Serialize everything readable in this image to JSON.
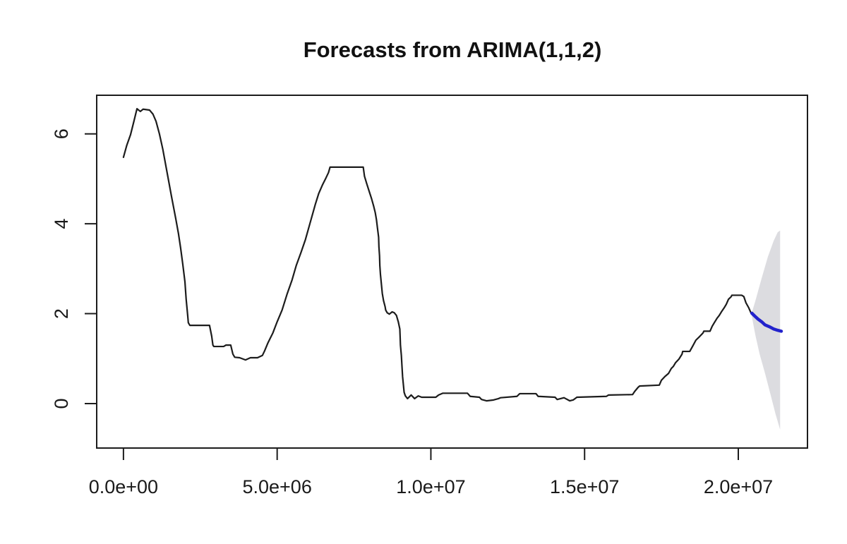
{
  "chart_data": {
    "type": "line",
    "title": "Forecasts from ARIMA(1,1,2)",
    "x_axis": {
      "lim": [
        -870000,
        22250000
      ],
      "ticks": [
        0,
        5000000,
        10000000,
        15000000,
        20000000
      ],
      "tick_labels": [
        "0.0e+00",
        "5.0e+06",
        "1.0e+07",
        "1.5e+07",
        "2.0e+07"
      ]
    },
    "y_axis": {
      "lim": [
        -0.99,
        6.86
      ],
      "ticks": [
        0,
        2,
        4,
        6
      ],
      "tick_labels": [
        "0",
        "2",
        "4",
        "6"
      ]
    },
    "grid": false,
    "legend": "none",
    "colors": {
      "historical": "#1c1c1c",
      "forecast": "#2222cc",
      "interval": "#dcdce0",
      "axis": "#1c1c1c",
      "background": "#ffffff"
    },
    "interval": {
      "name": "forecast-confidence-interval",
      "polygon": [
        [
          20440000,
          2.02
        ],
        [
          20570000,
          2.32
        ],
        [
          20760000,
          2.79
        ],
        [
          20960000,
          3.26
        ],
        [
          21150000,
          3.62
        ],
        [
          21280000,
          3.81
        ],
        [
          21360000,
          3.85
        ],
        [
          21360000,
          -0.58
        ],
        [
          21210000,
          -0.23
        ],
        [
          21060000,
          0.17
        ],
        [
          20870000,
          0.67
        ],
        [
          20690000,
          1.11
        ],
        [
          20550000,
          1.54
        ],
        [
          20440000,
          1.94
        ]
      ]
    },
    "series": [
      {
        "name": "historical",
        "color_key": "historical",
        "stroke_width": 2.2,
        "points": [
          [
            0,
            5.48
          ],
          [
            110000,
            5.75
          ],
          [
            230000,
            5.98
          ],
          [
            340000,
            6.28
          ],
          [
            440000,
            6.56
          ],
          [
            550000,
            6.5
          ],
          [
            640000,
            6.55
          ],
          [
            850000,
            6.53
          ],
          [
            960000,
            6.44
          ],
          [
            1060000,
            6.28
          ],
          [
            1170000,
            6.0
          ],
          [
            1280000,
            5.66
          ],
          [
            1420000,
            5.14
          ],
          [
            1560000,
            4.62
          ],
          [
            1700000,
            4.12
          ],
          [
            1790000,
            3.78
          ],
          [
            1860000,
            3.46
          ],
          [
            1930000,
            3.1
          ],
          [
            2000000,
            2.71
          ],
          [
            2040000,
            2.32
          ],
          [
            2090000,
            1.96
          ],
          [
            2110000,
            1.8
          ],
          [
            2160000,
            1.74
          ],
          [
            2800000,
            1.74
          ],
          [
            2870000,
            1.5
          ],
          [
            2910000,
            1.3
          ],
          [
            2940000,
            1.27
          ],
          [
            3260000,
            1.27
          ],
          [
            3330000,
            1.3
          ],
          [
            3490000,
            1.3
          ],
          [
            3560000,
            1.1
          ],
          [
            3620000,
            1.03
          ],
          [
            3780000,
            1.02
          ],
          [
            3970000,
            0.97
          ],
          [
            4130000,
            1.02
          ],
          [
            4360000,
            1.02
          ],
          [
            4520000,
            1.07
          ],
          [
            4590000,
            1.17
          ],
          [
            4700000,
            1.35
          ],
          [
            4860000,
            1.57
          ],
          [
            5000000,
            1.82
          ],
          [
            5160000,
            2.08
          ],
          [
            5320000,
            2.43
          ],
          [
            5480000,
            2.74
          ],
          [
            5620000,
            3.07
          ],
          [
            5780000,
            3.37
          ],
          [
            5920000,
            3.65
          ],
          [
            6080000,
            4.04
          ],
          [
            6240000,
            4.43
          ],
          [
            6350000,
            4.67
          ],
          [
            6470000,
            4.86
          ],
          [
            6580000,
            5.01
          ],
          [
            6670000,
            5.14
          ],
          [
            6720000,
            5.26
          ],
          [
            7800000,
            5.26
          ],
          [
            7840000,
            5.06
          ],
          [
            7910000,
            4.9
          ],
          [
            7980000,
            4.75
          ],
          [
            8070000,
            4.56
          ],
          [
            8140000,
            4.39
          ],
          [
            8190000,
            4.25
          ],
          [
            8230000,
            4.09
          ],
          [
            8260000,
            3.92
          ],
          [
            8300000,
            3.7
          ],
          [
            8310000,
            3.49
          ],
          [
            8330000,
            3.29
          ],
          [
            8340000,
            3.07
          ],
          [
            8360000,
            2.87
          ],
          [
            8390000,
            2.66
          ],
          [
            8420000,
            2.45
          ],
          [
            8460000,
            2.29
          ],
          [
            8510000,
            2.16
          ],
          [
            8530000,
            2.08
          ],
          [
            8580000,
            2.02
          ],
          [
            8650000,
            1.99
          ],
          [
            8740000,
            2.04
          ],
          [
            8810000,
            2.02
          ],
          [
            8880000,
            1.96
          ],
          [
            8940000,
            1.82
          ],
          [
            8990000,
            1.66
          ],
          [
            9000000,
            1.49
          ],
          [
            9010000,
            1.3
          ],
          [
            9040000,
            1.07
          ],
          [
            9060000,
            0.83
          ],
          [
            9080000,
            0.6
          ],
          [
            9110000,
            0.39
          ],
          [
            9130000,
            0.25
          ],
          [
            9170000,
            0.17
          ],
          [
            9240000,
            0.11
          ],
          [
            9360000,
            0.19
          ],
          [
            9470000,
            0.11
          ],
          [
            9590000,
            0.17
          ],
          [
            9700000,
            0.14
          ],
          [
            10160000,
            0.14
          ],
          [
            10250000,
            0.19
          ],
          [
            10390000,
            0.23
          ],
          [
            11190000,
            0.23
          ],
          [
            11280000,
            0.16
          ],
          [
            11580000,
            0.14
          ],
          [
            11650000,
            0.09
          ],
          [
            11810000,
            0.06
          ],
          [
            12040000,
            0.08
          ],
          [
            12200000,
            0.11
          ],
          [
            12270000,
            0.13
          ],
          [
            12800000,
            0.16
          ],
          [
            12890000,
            0.22
          ],
          [
            13420000,
            0.22
          ],
          [
            13490000,
            0.16
          ],
          [
            14040000,
            0.14
          ],
          [
            14110000,
            0.09
          ],
          [
            14330000,
            0.13
          ],
          [
            14520000,
            0.06
          ],
          [
            14630000,
            0.08
          ],
          [
            14750000,
            0.14
          ],
          [
            15710000,
            0.16
          ],
          [
            15780000,
            0.19
          ],
          [
            16560000,
            0.2
          ],
          [
            16630000,
            0.27
          ],
          [
            16740000,
            0.36
          ],
          [
            16790000,
            0.39
          ],
          [
            17430000,
            0.41
          ],
          [
            17500000,
            0.52
          ],
          [
            17610000,
            0.6
          ],
          [
            17730000,
            0.67
          ],
          [
            17820000,
            0.78
          ],
          [
            17890000,
            0.83
          ],
          [
            17960000,
            0.91
          ],
          [
            18070000,
            0.99
          ],
          [
            18170000,
            1.1
          ],
          [
            18190000,
            1.16
          ],
          [
            18420000,
            1.16
          ],
          [
            18510000,
            1.27
          ],
          [
            18620000,
            1.41
          ],
          [
            18740000,
            1.49
          ],
          [
            18850000,
            1.57
          ],
          [
            18880000,
            1.61
          ],
          [
            19080000,
            1.61
          ],
          [
            19150000,
            1.72
          ],
          [
            19220000,
            1.8
          ],
          [
            19310000,
            1.9
          ],
          [
            19380000,
            1.96
          ],
          [
            19450000,
            2.04
          ],
          [
            19540000,
            2.13
          ],
          [
            19610000,
            2.21
          ],
          [
            19680000,
            2.32
          ],
          [
            19770000,
            2.38
          ],
          [
            19790000,
            2.41
          ],
          [
            20110000,
            2.41
          ],
          [
            20180000,
            2.38
          ],
          [
            20250000,
            2.24
          ],
          [
            20340000,
            2.13
          ],
          [
            20410000,
            2.02
          ]
        ]
      },
      {
        "name": "forecast",
        "color_key": "forecast",
        "stroke_width": 4.5,
        "points": [
          [
            20440000,
            2.01
          ],
          [
            20530000,
            1.95
          ],
          [
            20640000,
            1.88
          ],
          [
            20760000,
            1.82
          ],
          [
            20870000,
            1.75
          ],
          [
            21010000,
            1.71
          ],
          [
            21150000,
            1.66
          ],
          [
            21280000,
            1.63
          ],
          [
            21400000,
            1.61
          ]
        ]
      }
    ]
  }
}
